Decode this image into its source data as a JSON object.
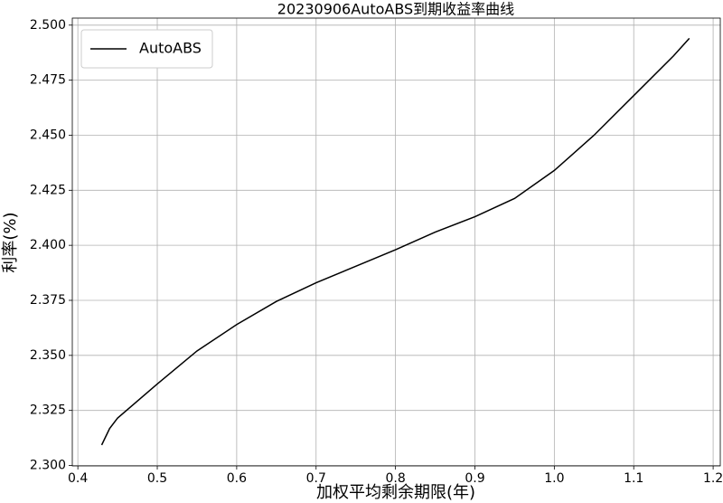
{
  "chart_data": {
    "type": "line",
    "title": "20230906AutoABS到期收益率曲线",
    "x_label": "加权平均剩余期限(年)",
    "y_label": "利率(%)",
    "x": [
      0.43,
      0.44,
      0.45,
      0.5,
      0.55,
      0.6,
      0.65,
      0.7,
      0.75,
      0.8,
      0.85,
      0.9,
      0.95,
      1.0,
      1.05,
      1.1,
      1.15,
      1.17
    ],
    "series": [
      {
        "name": "AutoABS",
        "color": "#000000",
        "values": [
          2.3093,
          2.3168,
          2.3215,
          2.337,
          2.352,
          2.364,
          2.3745,
          2.383,
          2.3905,
          2.398,
          2.406,
          2.413,
          2.4213,
          2.434,
          2.45,
          2.468,
          2.486,
          2.494
        ]
      }
    ],
    "xlim": [
      0.393,
      1.209
    ],
    "ylim": [
      2.2998,
      2.5032
    ],
    "xticks": [
      0.4,
      0.5,
      0.6,
      0.7,
      0.8,
      0.9,
      {
        "value": 1.0,
        "label": "1.0"
      },
      1.1,
      1.2
    ],
    "yticks": [
      {
        "value": 2.3,
        "label": "2.300"
      },
      {
        "value": 2.325,
        "label": "2.325"
      },
      {
        "value": 2.35,
        "label": "2.350"
      },
      {
        "value": 2.375,
        "label": "2.375"
      },
      {
        "value": 2.4,
        "label": "2.400"
      },
      {
        "value": 2.425,
        "label": "2.425"
      },
      {
        "value": 2.45,
        "label": "2.450"
      },
      {
        "value": 2.475,
        "label": "2.475"
      },
      {
        "value": 2.5,
        "label": "2.500"
      }
    ],
    "grid": true,
    "legend": "upper left"
  }
}
